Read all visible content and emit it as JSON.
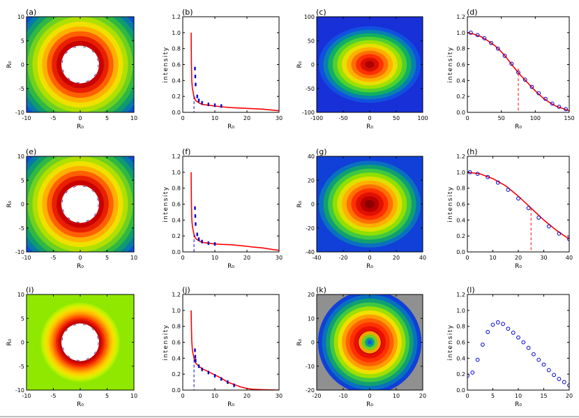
{
  "chart_data": [
    {
      "panel": "(a)",
      "type": "heatmap",
      "xlabel": "R₀",
      "ylabel": "R₀",
      "xlim": [
        -10,
        10
      ],
      "ylim": [
        -10,
        10
      ],
      "xticks": [
        "-10",
        "-5",
        "0",
        "5",
        "10"
      ],
      "yticks": [
        "-10",
        "-5",
        "0",
        "5",
        "10"
      ],
      "pattern": "ring",
      "hole_radius": 3.5,
      "scale": 26,
      "colors": [
        "#c80000",
        "#e82000",
        "#ff6000",
        "#ffb000",
        "#f0e000",
        "#b0e000",
        "#70d020",
        "#30b840",
        "#109a70",
        "#0878a8",
        "#0a50d8",
        "#1430e0"
      ]
    },
    {
      "panel": "(b)",
      "type": "line",
      "xlabel": "R₀",
      "ylabel": "intensity",
      "xlim": [
        0,
        30
      ],
      "ylim": [
        0,
        1.2
      ],
      "xticks": [
        0,
        10,
        20,
        30
      ],
      "yticks": [
        0.0,
        0.2,
        0.4,
        0.6,
        0.8,
        1.0,
        1.2
      ],
      "series": [
        {
          "name": "red",
          "color": "#ff0000",
          "style": "solid",
          "x": [
            2.6,
            2.7,
            2.8,
            3.0,
            3.5,
            4,
            5,
            6,
            8,
            10,
            12,
            15,
            20,
            25,
            30
          ],
          "y": [
            1.0,
            0.62,
            0.4,
            0.3,
            0.2,
            0.15,
            0.12,
            0.1,
            0.09,
            0.08,
            0.07,
            0.06,
            0.05,
            0.04,
            0.02
          ]
        },
        {
          "name": "blue",
          "color": "#0000cc",
          "style": "markers",
          "x": [
            3.8,
            3.9,
            4.0,
            4.5,
            5,
            6,
            8,
            10,
            12
          ],
          "y": [
            0.55,
            0.45,
            0.35,
            0.2,
            0.15,
            0.12,
            0.1,
            0.09,
            0.08
          ]
        }
      ],
      "vlines": [
        {
          "x": 3.5,
          "y": 0.2,
          "color": "#0000cc"
        }
      ]
    },
    {
      "panel": "(c)",
      "type": "heatmap",
      "xlabel": "R₀",
      "ylabel": "R₀",
      "xlim": [
        -100,
        100
      ],
      "ylim": [
        -100,
        100
      ],
      "xticks": [
        "-100",
        "-50",
        "0",
        "50",
        "100"
      ],
      "yticks": [
        "-100",
        "-50",
        "0",
        "50",
        "100"
      ],
      "pattern": "gauss",
      "rx": 100,
      "ry": 75,
      "scale": 110,
      "colors": [
        "#b00000",
        "#d81000",
        "#ff3000",
        "#ff7000",
        "#ffb000",
        "#e8e000",
        "#a0e000",
        "#50d030",
        "#10b060",
        "#0880b0",
        "#1050e0",
        "#1830d8"
      ]
    },
    {
      "panel": "(d)",
      "type": "line",
      "xlabel": "R₀",
      "ylabel": "intensity",
      "xlim": [
        0,
        150
      ],
      "ylim": [
        0,
        1.2
      ],
      "xticks": [
        0,
        50,
        100,
        150
      ],
      "yticks": [
        0.0,
        0.2,
        0.4,
        0.6,
        0.8,
        1.0,
        1.2
      ],
      "series": [
        {
          "name": "red",
          "color": "#ff0000",
          "style": "solid",
          "x": [
            0,
            10,
            20,
            30,
            40,
            50,
            60,
            70,
            80,
            90,
            100,
            110,
            120,
            130,
            140,
            150
          ],
          "y": [
            1.0,
            0.98,
            0.95,
            0.9,
            0.84,
            0.76,
            0.66,
            0.55,
            0.45,
            0.36,
            0.27,
            0.19,
            0.13,
            0.08,
            0.05,
            0.02
          ]
        },
        {
          "name": "blue",
          "color": "#0000cc",
          "style": "circles",
          "x": [
            5,
            15,
            25,
            35,
            45,
            55,
            65,
            75,
            85,
            95,
            105,
            115,
            125,
            135,
            145
          ],
          "y": [
            1.0,
            0.97,
            0.93,
            0.87,
            0.8,
            0.71,
            0.61,
            0.5,
            0.41,
            0.32,
            0.24,
            0.17,
            0.11,
            0.07,
            0.04
          ]
        }
      ],
      "vlines": [
        {
          "x": 75,
          "y": 0.55,
          "color": "#ff0000"
        }
      ]
    },
    {
      "panel": "(e)",
      "type": "heatmap",
      "xlabel": "R₀",
      "ylabel": "R₀",
      "xlim": [
        -10,
        10
      ],
      "ylim": [
        -10,
        10
      ],
      "xticks": [
        "-10",
        "-5",
        "0",
        "5",
        "10"
      ],
      "yticks": [
        "-10",
        "-5",
        "0",
        "5",
        "10"
      ],
      "pattern": "ring",
      "hole_radius": 3.5,
      "scale": 26,
      "colors": [
        "#c80000",
        "#e82000",
        "#ff6000",
        "#ffb000",
        "#f0e000",
        "#b0e000",
        "#70d020",
        "#30b840",
        "#109a70",
        "#0878a8",
        "#0a50d8",
        "#1430e0"
      ]
    },
    {
      "panel": "(f)",
      "type": "line",
      "xlabel": "R₀",
      "ylabel": "intensity",
      "xlim": [
        0,
        30
      ],
      "ylim": [
        0,
        1.2
      ],
      "xticks": [
        0,
        10,
        20,
        30
      ],
      "yticks": [
        0.0,
        0.2,
        0.4,
        0.6,
        0.8,
        1.0,
        1.2
      ],
      "series": [
        {
          "name": "red",
          "color": "#ff0000",
          "style": "solid",
          "x": [
            2.6,
            2.7,
            2.8,
            3.0,
            3.5,
            4,
            5,
            6,
            8,
            10,
            12,
            15,
            18,
            20,
            22,
            25,
            28,
            30
          ],
          "y": [
            1.0,
            0.64,
            0.42,
            0.32,
            0.22,
            0.17,
            0.14,
            0.12,
            0.11,
            0.1,
            0.095,
            0.09,
            0.08,
            0.07,
            0.06,
            0.05,
            0.03,
            0.02
          ]
        },
        {
          "name": "blue",
          "color": "#0000cc",
          "style": "markers",
          "x": [
            3.8,
            3.9,
            4.0,
            4.5,
            5,
            6,
            8,
            10
          ],
          "y": [
            0.55,
            0.45,
            0.35,
            0.22,
            0.16,
            0.13,
            0.11,
            0.1
          ]
        }
      ],
      "vlines": [
        {
          "x": 3.5,
          "y": 0.22,
          "color": "#0000cc"
        }
      ]
    },
    {
      "panel": "(g)",
      "type": "heatmap",
      "xlabel": "R₀",
      "ylabel": "R₀",
      "xlim": [
        -40,
        40
      ],
      "ylim": [
        -40,
        40
      ],
      "xticks": [
        "-40",
        "-20",
        "0",
        "20",
        "40"
      ],
      "yticks": [
        "-40",
        "-20",
        "0",
        "20",
        "40"
      ],
      "pattern": "gauss",
      "rx": 40,
      "ry": 34,
      "scale": 46,
      "colors": [
        "#8a0000",
        "#b80000",
        "#e01000",
        "#ff3000",
        "#ff7000",
        "#ffb000",
        "#e0e000",
        "#90e000",
        "#40c840",
        "#10a070",
        "#0a70c0",
        "#1040d8"
      ]
    },
    {
      "panel": "(h)",
      "type": "line",
      "xlabel": "R₀",
      "ylabel": "intensity",
      "xlim": [
        0,
        40
      ],
      "ylim": [
        0,
        1.2
      ],
      "xticks": [
        0,
        10,
        20,
        30,
        40
      ],
      "yticks": [
        0.0,
        0.2,
        0.4,
        0.6,
        0.8,
        1.0,
        1.2
      ],
      "series": [
        {
          "name": "red",
          "color": "#ff0000",
          "style": "solid",
          "x": [
            0,
            5,
            10,
            15,
            20,
            25,
            30,
            35,
            40
          ],
          "y": [
            1.0,
            0.98,
            0.92,
            0.83,
            0.7,
            0.55,
            0.4,
            0.27,
            0.16
          ]
        },
        {
          "name": "blue",
          "color": "#0000cc",
          "style": "circles",
          "x": [
            1,
            4,
            8,
            12,
            16,
            20,
            24,
            28,
            32,
            36,
            40
          ],
          "y": [
            1.0,
            0.98,
            0.94,
            0.87,
            0.78,
            0.67,
            0.55,
            0.43,
            0.32,
            0.23,
            0.16
          ]
        }
      ],
      "vlines": [
        {
          "x": 25,
          "y": 0.55,
          "color": "#ff0000"
        }
      ]
    },
    {
      "panel": "(i)",
      "type": "heatmap",
      "xlabel": "R₀",
      "ylabel": "R₀",
      "xlim": [
        -10,
        10
      ],
      "ylim": [
        -10,
        10
      ],
      "xticks": [
        "-10",
        "-5",
        "0",
        "5",
        "10"
      ],
      "yticks": [
        "-10",
        "-5",
        "0",
        "5",
        "10"
      ],
      "pattern": "ring",
      "hole_radius": 3.5,
      "scale": 14,
      "colors": [
        "#c00000",
        "#d81000",
        "#f02800",
        "#ff5000",
        "#ff7800",
        "#ffa000",
        "#ffc000",
        "#f8d800",
        "#e8e800",
        "#d0f000",
        "#b0f000",
        "#90e800"
      ]
    },
    {
      "panel": "(j)",
      "type": "line",
      "xlabel": "R₀",
      "ylabel": "intensity",
      "xlim": [
        0,
        30
      ],
      "ylim": [
        0,
        1.2
      ],
      "xticks": [
        0,
        10,
        20,
        30
      ],
      "yticks": [
        0.0,
        0.2,
        0.4,
        0.6,
        0.8,
        1.0,
        1.2
      ],
      "series": [
        {
          "name": "red",
          "color": "#ff0000",
          "style": "solid",
          "x": [
            2.6,
            2.7,
            2.8,
            3.0,
            3.5,
            4,
            5,
            6,
            8,
            10,
            12,
            14,
            16,
            18,
            20,
            22,
            25,
            30
          ],
          "y": [
            1.0,
            0.8,
            0.62,
            0.5,
            0.4,
            0.34,
            0.3,
            0.27,
            0.23,
            0.19,
            0.15,
            0.1,
            0.07,
            0.04,
            0.02,
            0.01,
            0.005,
            0.0
          ]
        },
        {
          "name": "blue",
          "color": "#0000cc",
          "style": "markers",
          "x": [
            3.8,
            3.9,
            4.0,
            5,
            6,
            8,
            10,
            12,
            14,
            16
          ],
          "y": [
            0.5,
            0.42,
            0.37,
            0.3,
            0.26,
            0.22,
            0.18,
            0.14,
            0.1,
            0.06
          ]
        }
      ],
      "vlines": [
        {
          "x": 3.5,
          "y": 0.38,
          "color": "#0000cc"
        }
      ]
    },
    {
      "panel": "(k)",
      "type": "heatmap",
      "xlabel": "R₀",
      "ylabel": "R₀",
      "xlim": [
        -20,
        20
      ],
      "ylim": [
        -20,
        20
      ],
      "xticks": [
        "-20",
        "-10",
        "0",
        "10",
        "20"
      ],
      "yticks": [
        "-20",
        "-10",
        "0",
        "10",
        "20"
      ],
      "pattern": "donut",
      "scale": 20,
      "colors": [
        "#900000",
        "#c00000",
        "#e81000",
        "#ff3000",
        "#ff6000",
        "#ffa000",
        "#f0e000",
        "#a0e000",
        "#40c840",
        "#10a070",
        "#0a70c0",
        "#1040d8"
      ]
    },
    {
      "panel": "(l)",
      "type": "scatter",
      "xlabel": "R₀",
      "ylabel": "intensity",
      "xlim": [
        0,
        20
      ],
      "ylim": [
        0,
        1.2
      ],
      "xticks": [
        0,
        5,
        10,
        15,
        20
      ],
      "yticks": [
        0.0,
        0.2,
        0.4,
        0.6,
        0.8,
        1.0,
        1.2
      ],
      "series": [
        {
          "name": "blue",
          "color": "#0000cc",
          "style": "circles",
          "x": [
            0,
            1,
            2,
            3,
            4,
            5,
            6,
            7,
            8,
            9,
            10,
            11,
            12,
            13,
            14,
            15,
            16,
            17,
            18,
            19,
            20
          ],
          "y": [
            0.18,
            0.22,
            0.38,
            0.57,
            0.73,
            0.82,
            0.85,
            0.83,
            0.77,
            0.72,
            0.66,
            0.6,
            0.53,
            0.45,
            0.38,
            0.32,
            0.25,
            0.19,
            0.14,
            0.1,
            0.06
          ]
        }
      ],
      "vlines": []
    }
  ]
}
